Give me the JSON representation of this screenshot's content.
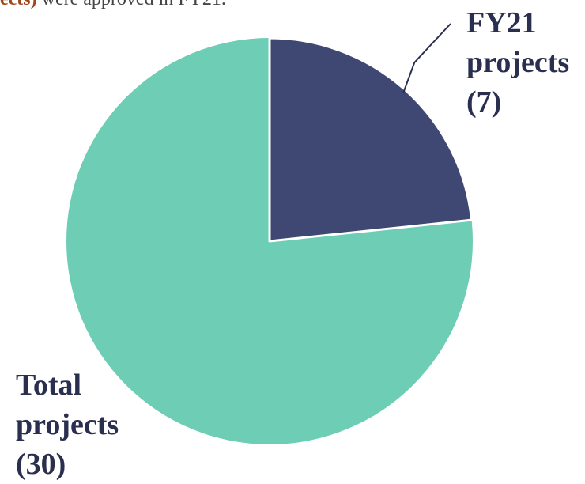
{
  "intro": {
    "highlight": "ects)",
    "text": " were approved in FY21."
  },
  "chart_data": {
    "type": "pie",
    "series": [
      {
        "name": "FY21 projects",
        "color": "#3f4872",
        "value": 7,
        "value_label": "(7)"
      },
      {
        "name": "Total projects",
        "color": "#6ecdb5",
        "value": 30,
        "value_label": "(30)"
      }
    ]
  }
}
